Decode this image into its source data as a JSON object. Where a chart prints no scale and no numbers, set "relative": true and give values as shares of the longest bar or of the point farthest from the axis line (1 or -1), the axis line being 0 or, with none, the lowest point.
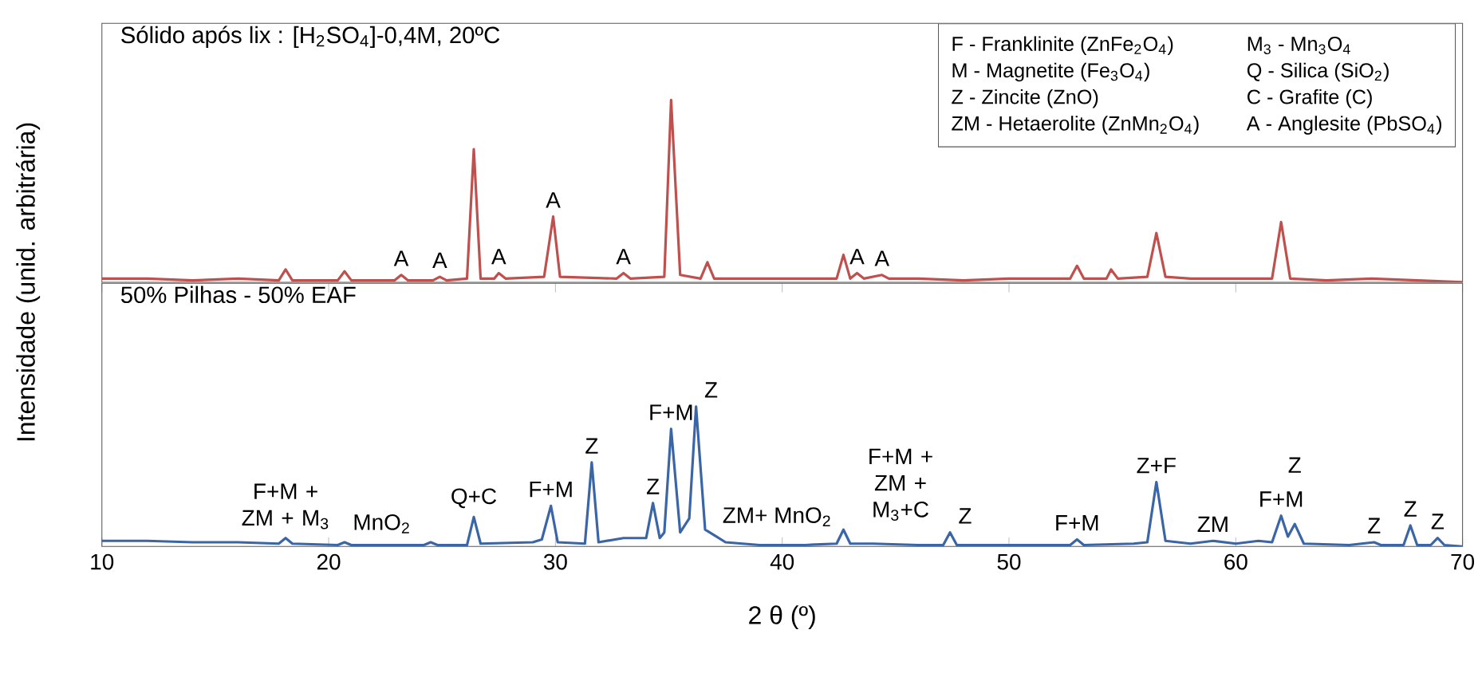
{
  "chart_data": [
    {
      "type": "line",
      "relative": true,
      "title": "Sólido após lix : [H$_{2}$SO$_{4}$]-0,4M, 20ºC",
      "ylabel": "Intensidade (unid. arbitrária)",
      "xlim": [
        10,
        70
      ],
      "tick_labels": false,
      "x": [
        10,
        12,
        14,
        16,
        17.8,
        18.1,
        18.4,
        20.4,
        20.7,
        21,
        22.9,
        23.2,
        23.5,
        24.6,
        24.9,
        25.2,
        26.1,
        26.4,
        26.7,
        27.3,
        27.5,
        27.8,
        29.5,
        29.9,
        30.2,
        32.7,
        33.0,
        33.3,
        34.8,
        35.1,
        35.5,
        36.4,
        36.7,
        37,
        39,
        41,
        42.4,
        42.7,
        43.0,
        43.3,
        43.6,
        44.4,
        44.7,
        46,
        48,
        50,
        52.7,
        53.0,
        53.3,
        54.3,
        54.5,
        54.8,
        56.1,
        56.5,
        56.9,
        58,
        60,
        61.6,
        62.0,
        62.4,
        64,
        66,
        68,
        70
      ],
      "series": [
        {
          "color": "#c0504d",
          "values": [
            0.02,
            0.02,
            0.01,
            0.02,
            0.01,
            0.07,
            0.01,
            0.01,
            0.06,
            0.01,
            0.01,
            0.04,
            0.01,
            0.01,
            0.03,
            0.01,
            0.02,
            0.73,
            0.02,
            0.02,
            0.05,
            0.02,
            0.03,
            0.36,
            0.03,
            0.02,
            0.05,
            0.02,
            0.03,
            1,
            0.04,
            0.02,
            0.11,
            0.02,
            0.02,
            0.02,
            0.02,
            0.15,
            0.02,
            0.05,
            0.02,
            0.04,
            0.02,
            0.02,
            0.01,
            0.02,
            0.02,
            0.09,
            0.02,
            0.02,
            0.07,
            0.02,
            0.03,
            0.27,
            0.03,
            0.02,
            0.02,
            0.02,
            0.33,
            0.02,
            0.01,
            0.02,
            0.01,
            0
          ]
        }
      ],
      "annotations": [
        "F - Franklinite (ZnFe$_{2}$O$_{4}$)",
        "M - Magnetite (Fe$_{3}$O$_{4}$)",
        "Z - Zincite (ZnO)",
        "ZM - Hetaerolite (ZnMn$_{2}$O$_{4}$)",
        "M$_{3}$ - Mn$_{3}$O$_{4}$",
        "Q - Silica (SiO$_{2}$)",
        "C - Grafite (C)",
        "A - Anglesite (PbSO$_{4}$)",
        {
          "text": "A",
          "x": 23.2,
          "y": 0.04
        },
        {
          "text": "A",
          "x": 24.9,
          "y": 0.03
        },
        {
          "text": "A",
          "x": 27.5,
          "y": 0.05
        },
        {
          "text": "A",
          "x": 29.9,
          "y": 0.36
        },
        {
          "text": "A",
          "x": 33.0,
          "y": 0.05
        },
        {
          "text": "A",
          "x": 43.3,
          "y": 0.05
        },
        {
          "text": "A",
          "x": 44.4,
          "y": 0.04
        }
      ]
    },
    {
      "type": "line",
      "relative": true,
      "title": "50% Pilhas - 50% EAF",
      "xlabel": "2 θ (º)",
      "xlim": [
        10,
        70
      ],
      "xticks": [
        10,
        20,
        30,
        40,
        50,
        60,
        70
      ],
      "tick_labels": "x",
      "x": [
        10,
        12,
        14,
        16,
        17.8,
        18.1,
        18.4,
        20.4,
        20.7,
        21,
        22.5,
        24.2,
        24.5,
        24.8,
        26.1,
        26.4,
        26.7,
        29.0,
        29.4,
        29.8,
        30.1,
        31.3,
        31.6,
        31.9,
        33.0,
        34.0,
        34.3,
        34.6,
        34.8,
        35.1,
        35.5,
        35.9,
        36.2,
        36.6,
        37.0,
        37.5,
        39,
        41,
        42.4,
        42.7,
        43.0,
        44,
        46,
        47.1,
        47.4,
        47.7,
        50,
        52.7,
        53.0,
        53.3,
        55.5,
        56.1,
        56.5,
        56.9,
        58,
        59,
        60,
        61,
        61.6,
        62.0,
        62.3,
        62.6,
        63,
        65,
        66.1,
        66.4,
        67.4,
        67.7,
        68.0,
        68.6,
        68.9,
        69.2,
        70
      ],
      "series": [
        {
          "color": "#3a66a7",
          "values": [
            0.04,
            0.04,
            0.03,
            0.03,
            0.02,
            0.06,
            0.02,
            0.01,
            0.03,
            0.01,
            0.01,
            0.01,
            0.03,
            0.01,
            0.01,
            0.21,
            0.02,
            0.03,
            0.05,
            0.29,
            0.03,
            0.02,
            0.6,
            0.03,
            0.06,
            0.06,
            0.31,
            0.06,
            0.1,
            0.84,
            0.1,
            0.2,
            1,
            0.12,
            0.08,
            0.03,
            0.01,
            0.01,
            0.02,
            0.12,
            0.02,
            0.02,
            0.01,
            0.01,
            0.1,
            0.01,
            0.01,
            0.01,
            0.05,
            0.01,
            0.02,
            0.03,
            0.46,
            0.04,
            0.02,
            0.04,
            0.02,
            0.04,
            0.03,
            0.22,
            0.07,
            0.16,
            0.02,
            0.01,
            0.03,
            0.01,
            0.01,
            0.15,
            0.01,
            0.01,
            0.06,
            0.01,
            0
          ]
        }
      ],
      "annotations": [
        {
          "text": "F+M + ZM + M$_{3}$",
          "x": 18.1,
          "y": 0.06
        },
        {
          "text": "MnO$_{2}$",
          "x": 20.7,
          "y": 0.03
        },
        {
          "text": "Q+C",
          "x": 26.4,
          "y": 0.21
        },
        {
          "text": "F+M",
          "x": 29.8,
          "y": 0.29
        },
        {
          "text": "Z",
          "x": 31.6,
          "y": 0.6
        },
        {
          "text": "Z",
          "x": 34.3,
          "y": 0.31
        },
        {
          "text": "F+M",
          "x": 35.1,
          "y": 0.84
        },
        {
          "text": "Z",
          "x": 36.2,
          "y": 1
        },
        {
          "text": "ZM+ MnO$_{2}$",
          "x": 37.0,
          "y": 0.08
        },
        {
          "text": "F+M + ZM + M$_{3}$+C",
          "x": 42.7,
          "y": 0.12
        },
        {
          "text": "Z",
          "x": 47.4,
          "y": 0.1
        },
        {
          "text": "F+M",
          "x": 53.0,
          "y": 0.05
        },
        {
          "text": "Z+F",
          "x": 56.5,
          "y": 0.46
        },
        {
          "text": "ZM",
          "x": 59,
          "y": 0.04
        },
        {
          "text": "F+M",
          "x": 62.0,
          "y": 0.22
        },
        {
          "text": "Z",
          "x": 62.6,
          "y": 0.16
        },
        {
          "text": "Z",
          "x": 66.1,
          "y": 0.03
        },
        {
          "text": "Z",
          "x": 67.7,
          "y": 0.15
        },
        {
          "text": "Z",
          "x": 68.9,
          "y": 0.06
        }
      ]
    }
  ]
}
